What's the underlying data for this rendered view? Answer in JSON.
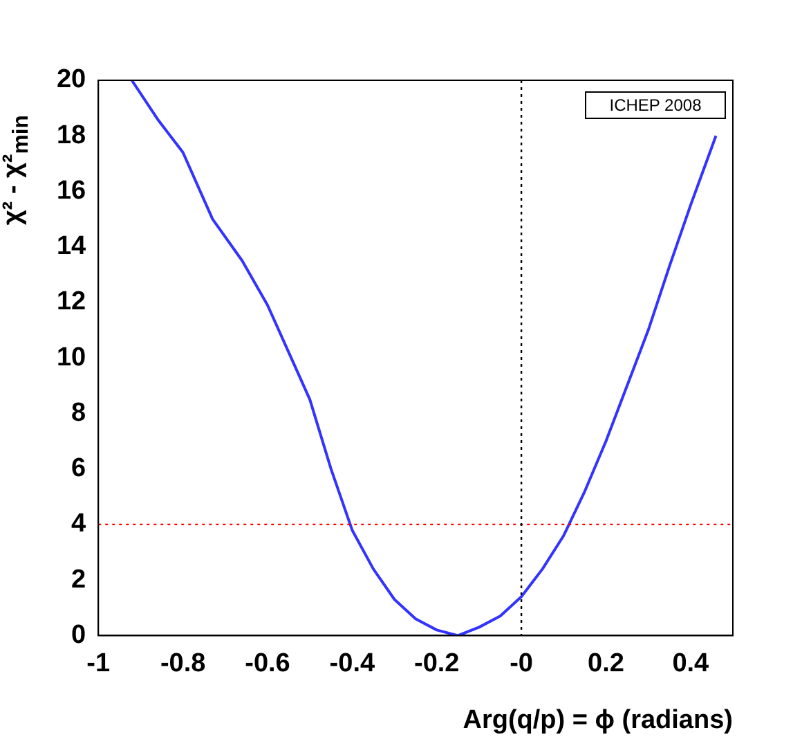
{
  "chart_data": {
    "type": "line",
    "xlabel": "Arg(q/p) = ϕ (radians)",
    "ylabel": "χ² - χ²$_{min}$",
    "series": [
      {
        "color": "#3333ff",
        "x": [
          -0.921,
          -0.86,
          -0.8,
          -0.73,
          -0.66,
          -0.6,
          -0.55,
          -0.5,
          -0.45,
          -0.4,
          -0.35,
          -0.3,
          -0.25,
          -0.2,
          -0.15,
          -0.1,
          -0.05,
          0,
          0.05,
          0.1,
          0.15,
          0.2,
          0.25,
          0.3,
          0.35,
          0.4,
          0.46
        ],
        "values": [
          20,
          18.6,
          17.4,
          15,
          13.5,
          11.9,
          10.2,
          8.5,
          6,
          3.8,
          2.4,
          1.3,
          0.6,
          0.2,
          0,
          0.3,
          0.7,
          1.4,
          2.4,
          3.6,
          5.2,
          7,
          9,
          11,
          13.3,
          15.5,
          18
        ]
      }
    ],
    "xlim": [
      -1,
      0.5
    ],
    "ylim": [
      0,
      20
    ],
    "xticks": [
      -1,
      -0.8,
      -0.6,
      -0.4,
      -0.2,
      {
        "value": 0,
        "label": "-0"
      },
      0.2,
      0.4
    ],
    "yticks": [
      0,
      2,
      4,
      6,
      8,
      10,
      12,
      14,
      16,
      18,
      20
    ],
    "ref_lines": [
      {
        "axis": "y",
        "value": 4,
        "color": "#ff0000",
        "line_style": "dotted"
      },
      {
        "axis": "x",
        "value": 0,
        "color": "#000000",
        "line_style": "dotted"
      }
    ],
    "annotations": [
      "ICHEP 2008"
    ],
    "grid": false,
    "legend": false,
    "marker": "none",
    "line_style": "solid"
  }
}
